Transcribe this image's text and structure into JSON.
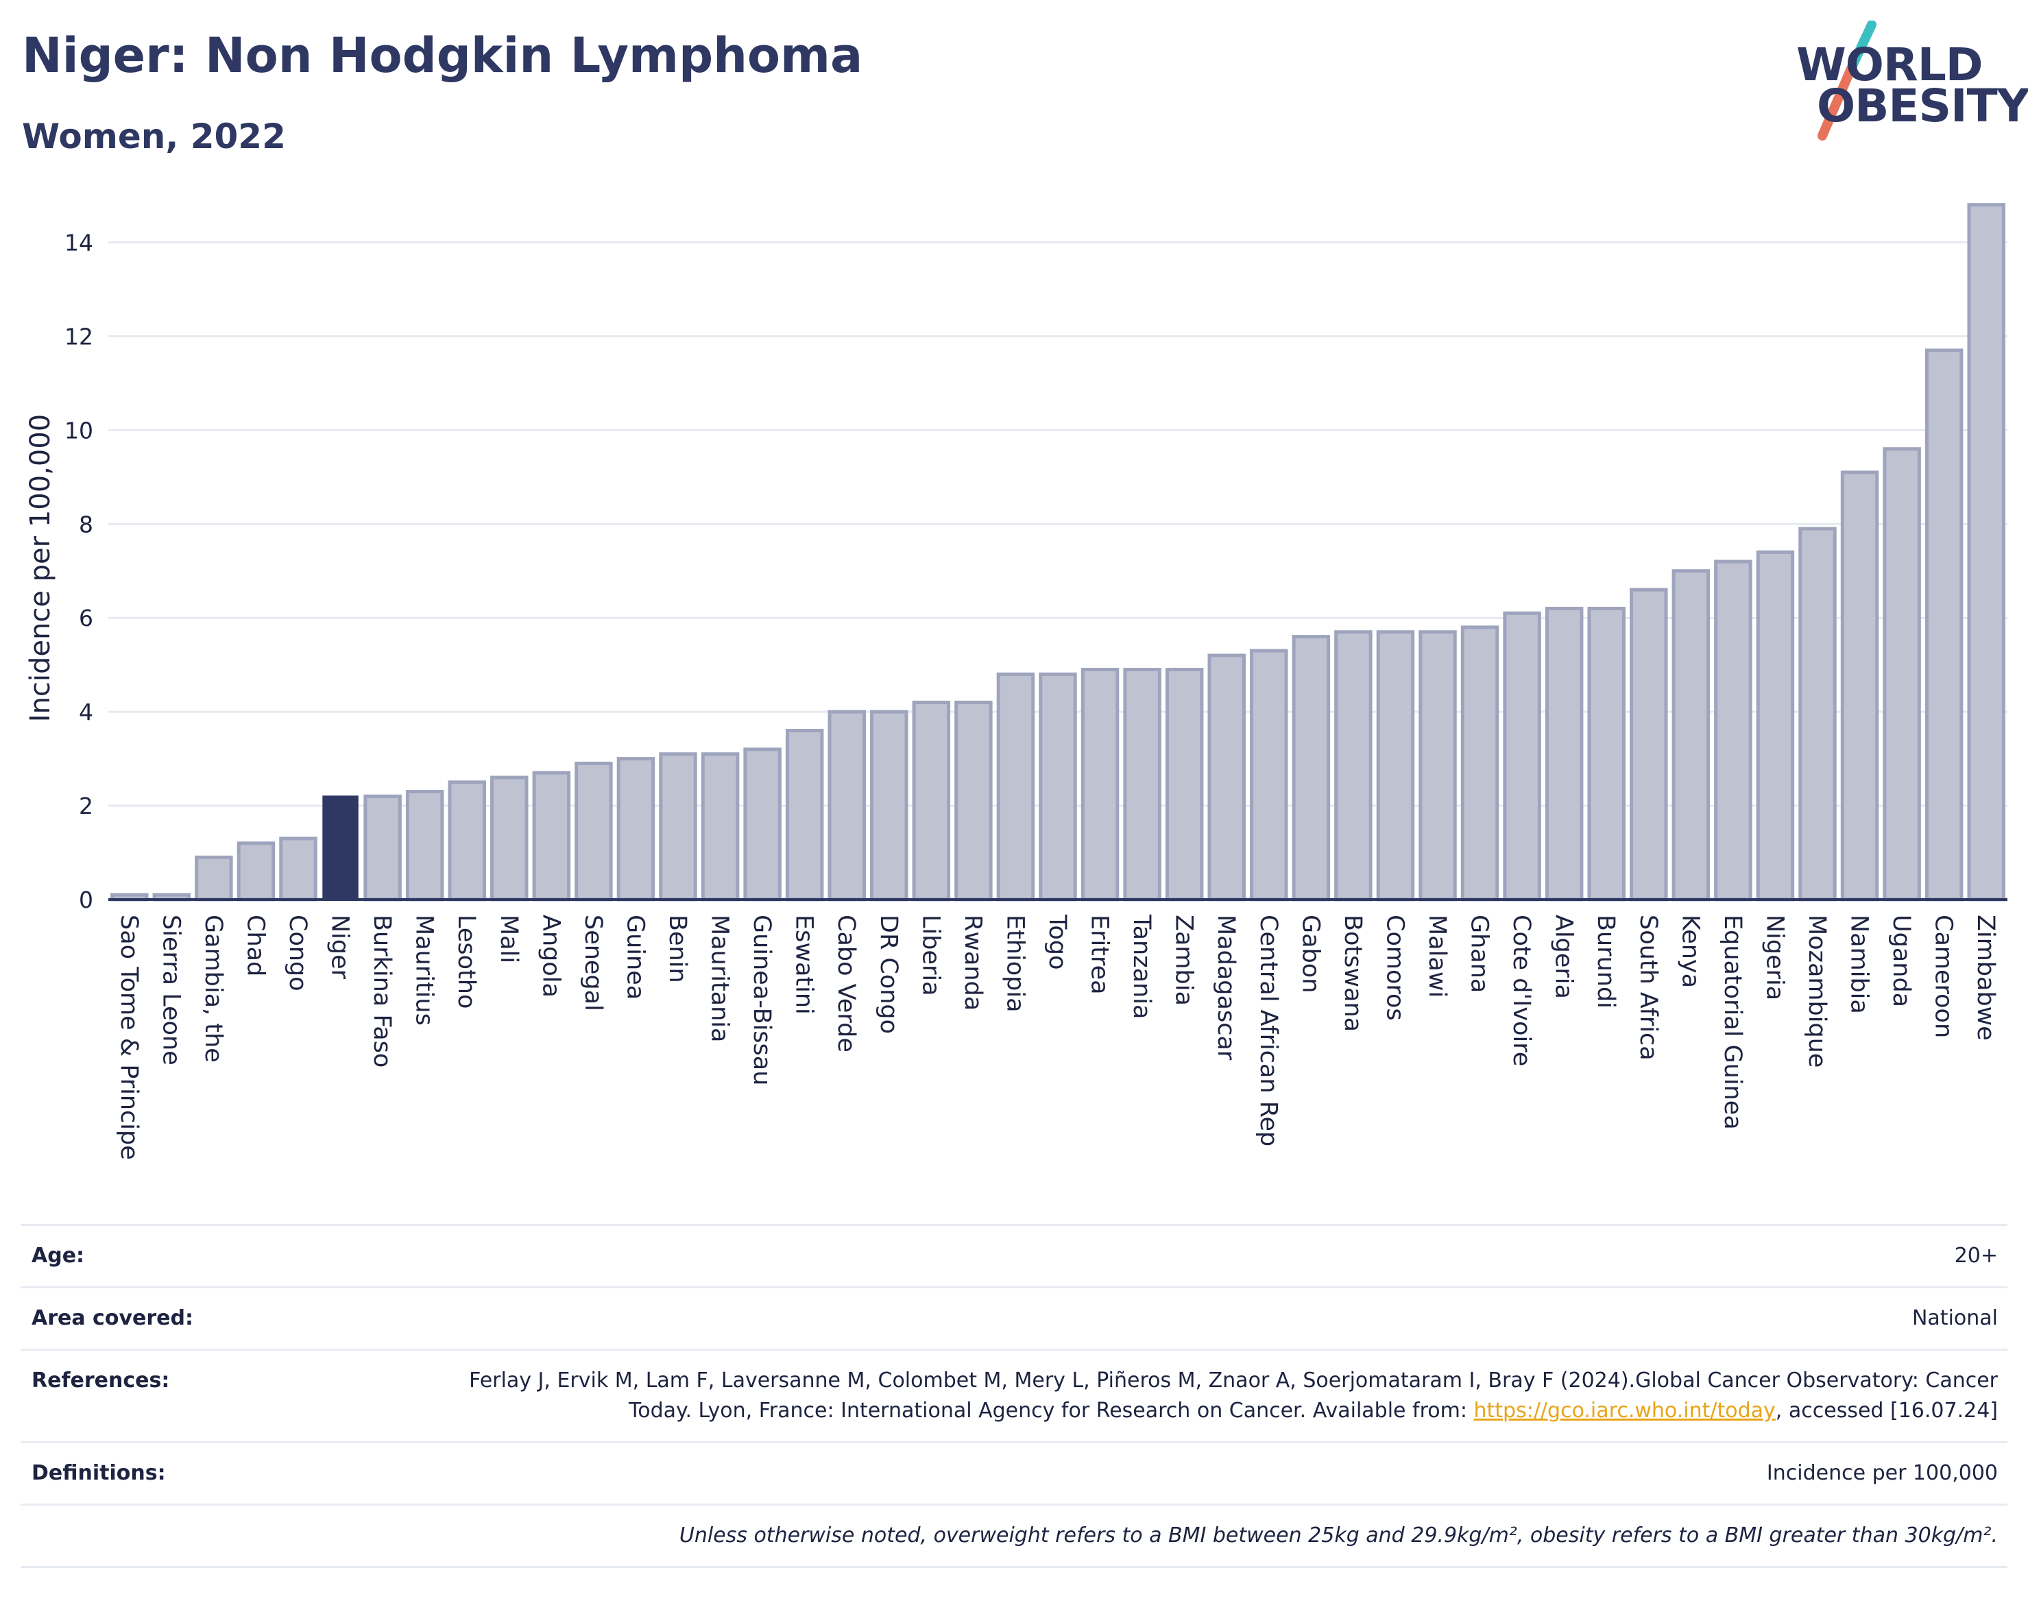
{
  "header": {
    "title": "Niger: Non Hodgkin Lymphoma",
    "subtitle": "Women, 2022",
    "logo_line1": "WORLD",
    "logo_line2": "OBESITY"
  },
  "colors": {
    "highlight_bar": "#2e3862",
    "other_bar": "#bfc3d1",
    "other_bar_border": "#9ea4bd",
    "grid": "#e6e8ef",
    "axis": "#2e3862",
    "logo_teal": "#3bbfc2",
    "logo_coral": "#e8735c",
    "link": "#e8a419"
  },
  "chart_data": {
    "type": "bar",
    "ylabel": "Incidence per 100,000",
    "ylim": [
      0,
      15
    ],
    "yticks": [
      0,
      2,
      4,
      6,
      8,
      10,
      12,
      14
    ],
    "highlight": "Niger",
    "grid": true,
    "categories": [
      "Sao Tome & Principe",
      "Sierra Leone",
      "Gambia, the",
      "Chad",
      "Congo",
      "Niger",
      "Burkina Faso",
      "Mauritius",
      "Lesotho",
      "Mali",
      "Angola",
      "Senegal",
      "Guinea",
      "Benin",
      "Mauritania",
      "Guinea-Bissau",
      "Eswatini",
      "Cabo Verde",
      "DR Congo",
      "Liberia",
      "Rwanda",
      "Ethiopia",
      "Togo",
      "Eritrea",
      "Tanzania",
      "Zambia",
      "Madagascar",
      "Central African Rep",
      "Gabon",
      "Botswana",
      "Comoros",
      "Malawi",
      "Ghana",
      "Cote d'Ivoire",
      "Algeria",
      "Burundi",
      "South Africa",
      "Kenya",
      "Equatorial Guinea",
      "Nigeria",
      "Mozambique",
      "Namibia",
      "Uganda",
      "Cameroon",
      "Zimbabwe"
    ],
    "values": [
      0.1,
      0.1,
      0.9,
      1.2,
      1.3,
      2.2,
      2.2,
      2.3,
      2.5,
      2.6,
      2.7,
      2.9,
      3.0,
      3.1,
      3.1,
      3.2,
      3.6,
      4.0,
      4.0,
      4.2,
      4.2,
      4.8,
      4.8,
      4.9,
      4.9,
      4.9,
      5.2,
      5.3,
      5.6,
      5.7,
      5.7,
      5.7,
      5.8,
      6.1,
      6.2,
      6.2,
      6.6,
      7.0,
      7.2,
      7.4,
      7.9,
      9.1,
      9.6,
      11.7,
      14.8
    ]
  },
  "meta": {
    "age_label": "Age:",
    "age_value": "20+",
    "area_label": "Area covered:",
    "area_value": "National",
    "references_label": "References:",
    "references_text_1": "Ferlay J, Ervik M, Lam F, Laversanne M, Colombet M, Mery L, Piñeros M, Znaor A, Soerjomataram I, Bray F (2024).Global Cancer Observatory: Cancer Today. Lyon, France: International Agency for Research on Cancer. Available from: ",
    "references_link": "https://gco.iarc.who.int/today",
    "references_text_2": ", accessed [16.07.24]",
    "definitions_label": "Definitions:",
    "definitions_value": "Incidence per 100,000",
    "note": "Unless otherwise noted, overweight refers to a BMI between 25kg and 29.9kg/m², obesity refers to a BMI greater than 30kg/m²."
  }
}
